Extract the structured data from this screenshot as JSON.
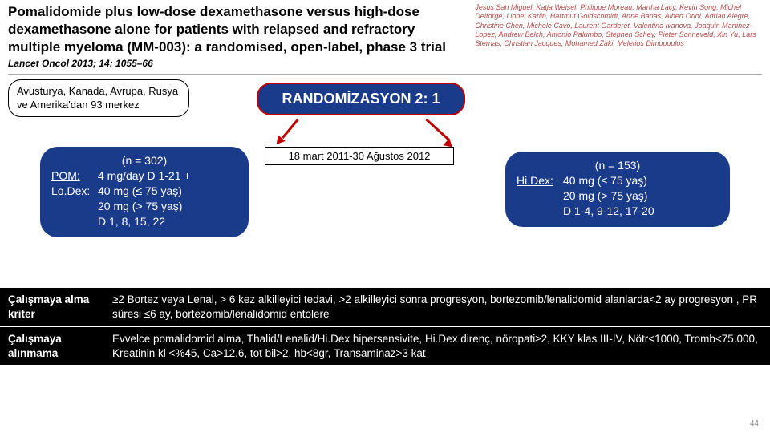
{
  "header": {
    "title": "Pomalidomide plus low-dose dexamethasone versus high-dose dexamethasone alone for patients with relapsed and refractory multiple myeloma (MM-003): a randomised, open-label, phase 3 trial",
    "citation": "Lancet Oncol 2013; 14: 1055–66",
    "authors": "Jesus San Miguel, Katja Weisel, Philippe Moreau, Martha Lacy, Kevin Song, Michel Delforge, Lionel Karlin, Hartmut Goldschmidt, Anne Banas, Albert Oriol, Adrian Alegre, Christine Chen, Michele Cavo, Laurent Garderet, Valentina Ivanova, Joaquin Martinez-Lopez, Andrew Belch, Antonio Palumbo, Stephen Schey, Pieter Sonneveld, Xin Yu, Lars Sternas, Christian Jacques, Mohamed Zaki, Meletios Dimopoulos"
  },
  "diagram": {
    "centers": "Avusturya, Kanada, Avrupa, Rusya ve Amerika'dan 93 merkez",
    "randomization": "RANDOMİZASYON 2: 1",
    "dates": "18 mart 2011-30 Ağustos 2012",
    "arm_left": {
      "n": "(n = 302)",
      "rows": [
        {
          "label": "POM:",
          "text": "4 mg/day D 1-21 +"
        },
        {
          "label": "Lo.Dex:",
          "text": "40 mg (≤ 75 yaş)\n20 mg (> 75 yaş)\nD 1, 8, 15, 22"
        }
      ]
    },
    "arm_right": {
      "n": "(n = 153)",
      "rows": [
        {
          "label": "Hi.Dex:",
          "text": "40 mg (≤ 75 yaş)\n20 mg (> 75 yaş)\nD 1-4, 9-12, 17-20"
        }
      ]
    },
    "colors": {
      "box_bg": "#1a3a8a",
      "box_border": "#c00000",
      "arrow": "#c00000",
      "authors": "#b94a48"
    }
  },
  "criteria": {
    "inclusion": {
      "label": "Çalışmaya alma kriter",
      "text": "≥2 Bortez veya Lenal, > 6 kez alkilleyici tedavi, >2 alkilleyici sonra progresyon, bortezomib/lenalidomid alanlarda<2 ay progresyon , PR süresi ≤6 ay, bortezomib/lenalidomid entolere"
    },
    "exclusion": {
      "label": "Çalışmaya alınmama",
      "text": "Evvelce pomalidomid alma, Thalid/Lenalid/Hi.Dex hipersensivite, Hi.Dex direnç, nöropati≥2, KKY klas III-IV, Nötr<1000, Tromb<75.000, Kreatinin kl <%45, Ca>12.6, tot bil>2, hb<8gr, Transaminaz>3 kat"
    }
  },
  "page": "44"
}
